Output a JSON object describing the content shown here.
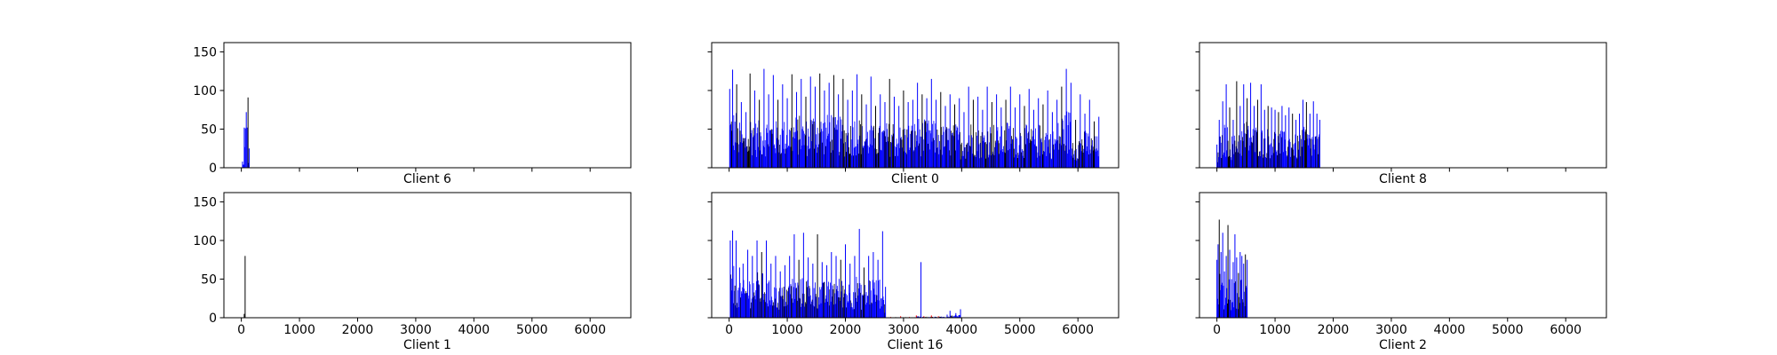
{
  "figure": {
    "background": "#ffffff",
    "series_colors": {
      "blue": "#0000ff",
      "black": "#000000",
      "red": "#ff0000"
    }
  },
  "axes_common": {
    "xlim": [
      -300,
      6700
    ],
    "ylim": [
      0,
      162
    ],
    "xticks": [
      0,
      1000,
      2000,
      3000,
      4000,
      5000,
      6000
    ],
    "yticks": [
      0,
      50,
      100,
      150
    ],
    "grid": false,
    "sharex": true,
    "sharey": true
  },
  "chart_data": [
    {
      "type": "bar",
      "title": "Client 6",
      "show_xticklabels": false,
      "show_yticklabels": true,
      "peaks": [
        {
          "x": 20,
          "y": 8,
          "color": "blue"
        },
        {
          "x": 50,
          "y": 52,
          "color": "blue"
        },
        {
          "x": 70,
          "y": 51,
          "color": "blue"
        },
        {
          "x": 85,
          "y": 72,
          "color": "blue"
        },
        {
          "x": 100,
          "y": 52,
          "color": "blue"
        },
        {
          "x": 115,
          "y": 91,
          "color": "black"
        },
        {
          "x": 135,
          "y": 25,
          "color": "blue"
        }
      ]
    },
    {
      "type": "bar",
      "title": "Client 0",
      "show_xticklabels": false,
      "show_yticklabels": false,
      "peaks": [
        {
          "x": 10,
          "y": 102,
          "color": "blue"
        },
        {
          "x": 60,
          "y": 127,
          "color": "blue"
        },
        {
          "x": 130,
          "y": 108,
          "color": "black"
        },
        {
          "x": 210,
          "y": 85,
          "color": "blue"
        },
        {
          "x": 290,
          "y": 72,
          "color": "blue"
        },
        {
          "x": 360,
          "y": 122,
          "color": "black"
        },
        {
          "x": 440,
          "y": 100,
          "color": "blue"
        },
        {
          "x": 520,
          "y": 88,
          "color": "black"
        },
        {
          "x": 600,
          "y": 128,
          "color": "blue"
        },
        {
          "x": 680,
          "y": 95,
          "color": "blue"
        },
        {
          "x": 760,
          "y": 120,
          "color": "blue"
        },
        {
          "x": 840,
          "y": 88,
          "color": "black"
        },
        {
          "x": 920,
          "y": 108,
          "color": "blue"
        },
        {
          "x": 1000,
          "y": 90,
          "color": "blue"
        },
        {
          "x": 1080,
          "y": 121,
          "color": "black"
        },
        {
          "x": 1160,
          "y": 98,
          "color": "blue"
        },
        {
          "x": 1240,
          "y": 115,
          "color": "blue"
        },
        {
          "x": 1320,
          "y": 92,
          "color": "black"
        },
        {
          "x": 1400,
          "y": 118,
          "color": "blue"
        },
        {
          "x": 1480,
          "y": 105,
          "color": "blue"
        },
        {
          "x": 1560,
          "y": 122,
          "color": "black"
        },
        {
          "x": 1640,
          "y": 100,
          "color": "blue"
        },
        {
          "x": 1720,
          "y": 110,
          "color": "blue"
        },
        {
          "x": 1800,
          "y": 120,
          "color": "black"
        },
        {
          "x": 1880,
          "y": 95,
          "color": "blue"
        },
        {
          "x": 1960,
          "y": 115,
          "color": "black"
        },
        {
          "x": 2040,
          "y": 88,
          "color": "blue"
        },
        {
          "x": 2120,
          "y": 100,
          "color": "blue"
        },
        {
          "x": 2200,
          "y": 121,
          "color": "blue"
        },
        {
          "x": 2280,
          "y": 95,
          "color": "black"
        },
        {
          "x": 2360,
          "y": 82,
          "color": "blue"
        },
        {
          "x": 2440,
          "y": 118,
          "color": "blue"
        },
        {
          "x": 2520,
          "y": 80,
          "color": "black"
        },
        {
          "x": 2600,
          "y": 95,
          "color": "blue"
        },
        {
          "x": 2680,
          "y": 85,
          "color": "blue"
        },
        {
          "x": 2760,
          "y": 115,
          "color": "black"
        },
        {
          "x": 2840,
          "y": 92,
          "color": "blue"
        },
        {
          "x": 2920,
          "y": 80,
          "color": "blue"
        },
        {
          "x": 3000,
          "y": 100,
          "color": "black"
        },
        {
          "x": 3080,
          "y": 85,
          "color": "blue"
        },
        {
          "x": 3160,
          "y": 88,
          "color": "blue"
        },
        {
          "x": 3240,
          "y": 110,
          "color": "blue"
        },
        {
          "x": 3320,
          "y": 95,
          "color": "black"
        },
        {
          "x": 3400,
          "y": 90,
          "color": "blue"
        },
        {
          "x": 3480,
          "y": 115,
          "color": "blue"
        },
        {
          "x": 3560,
          "y": 88,
          "color": "blue"
        },
        {
          "x": 3640,
          "y": 98,
          "color": "black"
        },
        {
          "x": 3720,
          "y": 80,
          "color": "blue"
        },
        {
          "x": 3800,
          "y": 95,
          "color": "blue"
        },
        {
          "x": 3880,
          "y": 82,
          "color": "black"
        },
        {
          "x": 3960,
          "y": 90,
          "color": "blue"
        },
        {
          "x": 4040,
          "y": 72,
          "color": "blue"
        },
        {
          "x": 4120,
          "y": 105,
          "color": "blue"
        },
        {
          "x": 4200,
          "y": 88,
          "color": "black"
        },
        {
          "x": 4280,
          "y": 92,
          "color": "blue"
        },
        {
          "x": 4360,
          "y": 75,
          "color": "blue"
        },
        {
          "x": 4440,
          "y": 105,
          "color": "blue"
        },
        {
          "x": 4520,
          "y": 85,
          "color": "black"
        },
        {
          "x": 4600,
          "y": 95,
          "color": "blue"
        },
        {
          "x": 4680,
          "y": 78,
          "color": "blue"
        },
        {
          "x": 4760,
          "y": 88,
          "color": "black"
        },
        {
          "x": 4840,
          "y": 105,
          "color": "blue"
        },
        {
          "x": 4920,
          "y": 78,
          "color": "blue"
        },
        {
          "x": 5000,
          "y": 95,
          "color": "blue"
        },
        {
          "x": 5080,
          "y": 80,
          "color": "black"
        },
        {
          "x": 5160,
          "y": 102,
          "color": "blue"
        },
        {
          "x": 5240,
          "y": 75,
          "color": "blue"
        },
        {
          "x": 5320,
          "y": 90,
          "color": "blue"
        },
        {
          "x": 5400,
          "y": 82,
          "color": "black"
        },
        {
          "x": 5480,
          "y": 100,
          "color": "blue"
        },
        {
          "x": 5560,
          "y": 72,
          "color": "blue"
        },
        {
          "x": 5640,
          "y": 88,
          "color": "blue"
        },
        {
          "x": 5720,
          "y": 105,
          "color": "black"
        },
        {
          "x": 5800,
          "y": 128,
          "color": "blue"
        },
        {
          "x": 5880,
          "y": 110,
          "color": "blue"
        },
        {
          "x": 5960,
          "y": 62,
          "color": "black"
        },
        {
          "x": 6040,
          "y": 95,
          "color": "blue"
        },
        {
          "x": 6120,
          "y": 70,
          "color": "blue"
        },
        {
          "x": 6200,
          "y": 88,
          "color": "blue"
        },
        {
          "x": 6280,
          "y": 60,
          "color": "black"
        },
        {
          "x": 6360,
          "y": 66,
          "color": "blue"
        }
      ]
    },
    {
      "type": "bar",
      "title": "Client 8",
      "show_xticklabels": false,
      "show_yticklabels": false,
      "peaks": [
        {
          "x": 0,
          "y": 30,
          "color": "blue"
        },
        {
          "x": 40,
          "y": 62,
          "color": "blue"
        },
        {
          "x": 100,
          "y": 86,
          "color": "blue"
        },
        {
          "x": 160,
          "y": 108,
          "color": "blue"
        },
        {
          "x": 220,
          "y": 78,
          "color": "black"
        },
        {
          "x": 280,
          "y": 62,
          "color": "blue"
        },
        {
          "x": 340,
          "y": 112,
          "color": "black"
        },
        {
          "x": 400,
          "y": 80,
          "color": "blue"
        },
        {
          "x": 460,
          "y": 108,
          "color": "blue"
        },
        {
          "x": 520,
          "y": 90,
          "color": "black"
        },
        {
          "x": 580,
          "y": 110,
          "color": "blue"
        },
        {
          "x": 640,
          "y": 80,
          "color": "blue"
        },
        {
          "x": 700,
          "y": 88,
          "color": "black"
        },
        {
          "x": 760,
          "y": 108,
          "color": "blue"
        },
        {
          "x": 820,
          "y": 75,
          "color": "blue"
        },
        {
          "x": 880,
          "y": 80,
          "color": "black"
        },
        {
          "x": 940,
          "y": 78,
          "color": "blue"
        },
        {
          "x": 1000,
          "y": 75,
          "color": "blue"
        },
        {
          "x": 1060,
          "y": 72,
          "color": "black"
        },
        {
          "x": 1120,
          "y": 80,
          "color": "blue"
        },
        {
          "x": 1180,
          "y": 68,
          "color": "blue"
        },
        {
          "x": 1240,
          "y": 78,
          "color": "blue"
        },
        {
          "x": 1300,
          "y": 70,
          "color": "black"
        },
        {
          "x": 1360,
          "y": 62,
          "color": "blue"
        },
        {
          "x": 1420,
          "y": 70,
          "color": "blue"
        },
        {
          "x": 1480,
          "y": 88,
          "color": "blue"
        },
        {
          "x": 1540,
          "y": 85,
          "color": "black"
        },
        {
          "x": 1600,
          "y": 70,
          "color": "blue"
        },
        {
          "x": 1660,
          "y": 86,
          "color": "blue"
        },
        {
          "x": 1720,
          "y": 70,
          "color": "blue"
        },
        {
          "x": 1770,
          "y": 62,
          "color": "blue"
        }
      ]
    },
    {
      "type": "bar",
      "title": "Client 1",
      "show_xticklabels": true,
      "show_yticklabels": true,
      "peaks": [
        {
          "x": 50,
          "y": 5,
          "color": "black"
        },
        {
          "x": 65,
          "y": 80,
          "color": "black"
        }
      ]
    },
    {
      "type": "bar",
      "title": "Client 16",
      "show_xticklabels": true,
      "show_yticklabels": false,
      "peaks": [
        {
          "x": 20,
          "y": 100,
          "color": "blue"
        },
        {
          "x": 60,
          "y": 113,
          "color": "blue"
        },
        {
          "x": 120,
          "y": 100,
          "color": "blue"
        },
        {
          "x": 180,
          "y": 65,
          "color": "blue"
        },
        {
          "x": 240,
          "y": 70,
          "color": "blue"
        },
        {
          "x": 320,
          "y": 88,
          "color": "blue"
        },
        {
          "x": 400,
          "y": 80,
          "color": "blue"
        },
        {
          "x": 480,
          "y": 100,
          "color": "blue"
        },
        {
          "x": 560,
          "y": 85,
          "color": "black"
        },
        {
          "x": 640,
          "y": 100,
          "color": "blue"
        },
        {
          "x": 720,
          "y": 70,
          "color": "blue"
        },
        {
          "x": 800,
          "y": 80,
          "color": "blue"
        },
        {
          "x": 880,
          "y": 60,
          "color": "blue"
        },
        {
          "x": 960,
          "y": 68,
          "color": "blue"
        },
        {
          "x": 1040,
          "y": 80,
          "color": "blue"
        },
        {
          "x": 1120,
          "y": 108,
          "color": "blue"
        },
        {
          "x": 1200,
          "y": 75,
          "color": "black"
        },
        {
          "x": 1280,
          "y": 110,
          "color": "blue"
        },
        {
          "x": 1360,
          "y": 78,
          "color": "blue"
        },
        {
          "x": 1440,
          "y": 70,
          "color": "blue"
        },
        {
          "x": 1520,
          "y": 108,
          "color": "black"
        },
        {
          "x": 1600,
          "y": 72,
          "color": "blue"
        },
        {
          "x": 1680,
          "y": 68,
          "color": "blue"
        },
        {
          "x": 1760,
          "y": 85,
          "color": "blue"
        },
        {
          "x": 1840,
          "y": 80,
          "color": "blue"
        },
        {
          "x": 1920,
          "y": 75,
          "color": "black"
        },
        {
          "x": 2000,
          "y": 95,
          "color": "blue"
        },
        {
          "x": 2080,
          "y": 70,
          "color": "blue"
        },
        {
          "x": 2160,
          "y": 80,
          "color": "blue"
        },
        {
          "x": 2240,
          "y": 115,
          "color": "blue"
        },
        {
          "x": 2320,
          "y": 65,
          "color": "black"
        },
        {
          "x": 2400,
          "y": 80,
          "color": "blue"
        },
        {
          "x": 2480,
          "y": 85,
          "color": "blue"
        },
        {
          "x": 2560,
          "y": 75,
          "color": "blue"
        },
        {
          "x": 2640,
          "y": 112,
          "color": "blue"
        },
        {
          "x": 2690,
          "y": 40,
          "color": "blue"
        },
        {
          "x": 2780,
          "y": 1,
          "color": "red"
        },
        {
          "x": 2950,
          "y": 2,
          "color": "red"
        },
        {
          "x": 3100,
          "y": 1,
          "color": "red"
        },
        {
          "x": 3220,
          "y": 3,
          "color": "red"
        },
        {
          "x": 3300,
          "y": 72,
          "color": "blue"
        },
        {
          "x": 3350,
          "y": 2,
          "color": "red"
        },
        {
          "x": 3480,
          "y": 3,
          "color": "red"
        },
        {
          "x": 3600,
          "y": 2,
          "color": "red"
        },
        {
          "x": 3750,
          "y": 4,
          "color": "blue"
        },
        {
          "x": 3800,
          "y": 9,
          "color": "blue"
        },
        {
          "x": 3900,
          "y": 6,
          "color": "blue"
        },
        {
          "x": 3980,
          "y": 11,
          "color": "blue"
        }
      ]
    },
    {
      "type": "bar",
      "title": "Client 2",
      "show_xticklabels": true,
      "show_yticklabels": false,
      "peaks": [
        {
          "x": 0,
          "y": 75,
          "color": "blue"
        },
        {
          "x": 20,
          "y": 95,
          "color": "blue"
        },
        {
          "x": 40,
          "y": 127,
          "color": "black"
        },
        {
          "x": 70,
          "y": 85,
          "color": "blue"
        },
        {
          "x": 100,
          "y": 110,
          "color": "blue"
        },
        {
          "x": 130,
          "y": 60,
          "color": "blue"
        },
        {
          "x": 160,
          "y": 80,
          "color": "blue"
        },
        {
          "x": 190,
          "y": 120,
          "color": "black"
        },
        {
          "x": 220,
          "y": 88,
          "color": "blue"
        },
        {
          "x": 250,
          "y": 50,
          "color": "blue"
        },
        {
          "x": 280,
          "y": 72,
          "color": "blue"
        },
        {
          "x": 310,
          "y": 108,
          "color": "blue"
        },
        {
          "x": 340,
          "y": 78,
          "color": "blue"
        },
        {
          "x": 370,
          "y": 58,
          "color": "black"
        },
        {
          "x": 400,
          "y": 85,
          "color": "blue"
        },
        {
          "x": 430,
          "y": 80,
          "color": "blue"
        },
        {
          "x": 460,
          "y": 70,
          "color": "blue"
        },
        {
          "x": 490,
          "y": 82,
          "color": "black"
        },
        {
          "x": 520,
          "y": 75,
          "color": "blue"
        }
      ]
    }
  ]
}
